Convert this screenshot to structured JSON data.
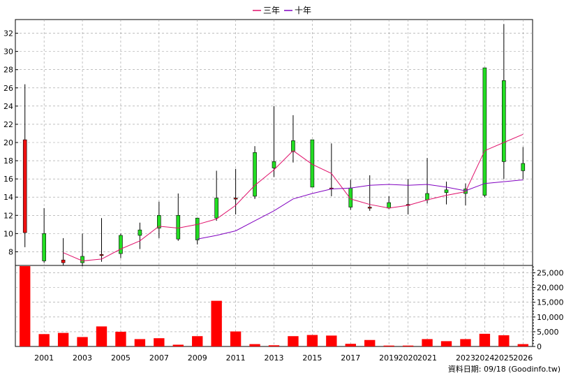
{
  "chart_data": {
    "type": "candlestick",
    "legend": [
      {
        "name": "三年",
        "color": "#e0106a"
      },
      {
        "name": "十年",
        "color": "#8000c0"
      }
    ],
    "legend_position": "top-center",
    "price_ylim": [
      6.5,
      33.5
    ],
    "price_yticks": [
      8,
      10,
      12,
      14,
      16,
      18,
      20,
      22,
      24,
      26,
      28,
      30,
      32
    ],
    "volume_ylim": [
      0,
      27500
    ],
    "volume_yticks": [
      "0",
      "5,000",
      "10,000",
      "15,000",
      "20,000",
      "25,000"
    ],
    "volume_ytick_values": [
      0,
      5000,
      10000,
      15000,
      20000,
      25000
    ],
    "x_tick_labels": [
      "2001",
      "2003",
      "2005",
      "2007",
      "2009",
      "2011",
      "2013",
      "2015",
      "2017",
      "2019",
      "2020",
      "2021",
      "2023",
      "2024",
      "2025",
      "2026"
    ],
    "x_tick_years": [
      2001,
      2003,
      2005,
      2007,
      2009,
      2011,
      2013,
      2015,
      2017,
      2019,
      2020,
      2021,
      2023,
      2024,
      2025,
      2026
    ],
    "grid": true,
    "candles": [
      {
        "year": 2000,
        "open": 10.1,
        "high": 26.4,
        "low": 8.5,
        "close": 20.3
      },
      {
        "year": 2001,
        "open": 10.0,
        "high": 12.8,
        "low": 6.8,
        "close": 7.0
      },
      {
        "year": 2002,
        "open": 6.8,
        "high": 9.5,
        "low": 6.5,
        "close": 7.1
      },
      {
        "year": 2003,
        "open": 7.5,
        "high": 10.0,
        "low": 6.4,
        "close": 6.8
      },
      {
        "year": 2004,
        "open": 7.6,
        "high": 11.7,
        "low": 6.9,
        "close": 7.7
      },
      {
        "year": 2005,
        "open": 9.8,
        "high": 10.0,
        "low": 7.3,
        "close": 7.8
      },
      {
        "year": 2006,
        "open": 10.4,
        "high": 11.2,
        "low": 8.3,
        "close": 9.8
      },
      {
        "year": 2007,
        "open": 12.0,
        "high": 13.5,
        "low": 9.5,
        "close": 10.6
      },
      {
        "year": 2008,
        "open": 12.0,
        "high": 14.4,
        "low": 9.2,
        "close": 9.4
      },
      {
        "year": 2009,
        "open": 11.7,
        "high": 11.7,
        "low": 8.8,
        "close": 9.3
      },
      {
        "year": 2010,
        "open": 13.9,
        "high": 16.9,
        "low": 11.4,
        "close": 11.7
      },
      {
        "year": 2011,
        "open": 13.9,
        "high": 17.1,
        "low": 12.1,
        "close": 13.9
      },
      {
        "year": 2012,
        "open": 18.9,
        "high": 19.6,
        "low": 13.8,
        "close": 14.1
      },
      {
        "year": 2013,
        "open": 17.9,
        "high": 24.0,
        "low": 16.2,
        "close": 17.2
      },
      {
        "year": 2014,
        "open": 20.2,
        "high": 23.0,
        "low": 17.8,
        "close": 19.0
      },
      {
        "year": 2015,
        "open": 20.3,
        "high": 20.3,
        "low": 15.1,
        "close": 15.1
      },
      {
        "year": 2016,
        "open": 14.9,
        "high": 19.9,
        "low": 14.1,
        "close": 15.0
      },
      {
        "year": 2017,
        "open": 15.0,
        "high": 15.9,
        "low": 12.6,
        "close": 12.9
      },
      {
        "year": 2018,
        "open": 12.8,
        "high": 16.4,
        "low": 12.5,
        "close": 12.9
      },
      {
        "year": 2019,
        "open": 13.4,
        "high": 14.1,
        "low": 12.7,
        "close": 12.8
      },
      {
        "year": 2020,
        "open": 13.1,
        "high": 16.0,
        "low": 12.1,
        "close": 13.2
      },
      {
        "year": 2021,
        "open": 14.4,
        "high": 18.3,
        "low": 13.3,
        "close": 13.7
      },
      {
        "year": 2022,
        "open": 14.8,
        "high": 15.7,
        "low": 13.2,
        "close": 14.5
      },
      {
        "year": 2023,
        "open": 14.9,
        "high": 15.5,
        "low": 13.1,
        "close": 14.4
      },
      {
        "year": 2024,
        "open": 28.2,
        "high": 28.2,
        "low": 14.0,
        "close": 14.2
      },
      {
        "year": 2025,
        "open": 26.8,
        "high": 33.0,
        "low": 16.0,
        "close": 17.9
      },
      {
        "year": 2026,
        "open": 17.7,
        "high": 19.5,
        "low": 16.0,
        "close": 16.9
      }
    ],
    "ma_3yr": {
      "years": [
        2002,
        2003,
        2004,
        2005,
        2006,
        2007,
        2008,
        2009,
        2010,
        2011,
        2012,
        2013,
        2014,
        2015,
        2016,
        2017,
        2018,
        2019,
        2020,
        2021,
        2022,
        2023,
        2024,
        2025,
        2026
      ],
      "values": [
        7.9,
        7.0,
        7.2,
        8.3,
        9.2,
        10.8,
        10.6,
        11.0,
        11.6,
        13.1,
        15.3,
        17.0,
        19.1,
        17.6,
        16.6,
        13.8,
        13.2,
        12.8,
        13.1,
        13.7,
        14.2,
        14.6,
        19.1,
        20.0,
        20.9
      ]
    },
    "ma_10yr": {
      "years": [
        2009,
        2010,
        2011,
        2012,
        2013,
        2014,
        2015,
        2016,
        2017,
        2018,
        2019,
        2020,
        2021,
        2022,
        2023,
        2024,
        2025,
        2026
      ],
      "values": [
        9.4,
        9.8,
        10.3,
        11.4,
        12.5,
        13.8,
        14.4,
        14.9,
        15.0,
        15.3,
        15.4,
        15.3,
        15.4,
        15.1,
        14.7,
        15.5,
        15.7,
        15.9
      ]
    },
    "volume": {
      "years": [
        2000,
        2001,
        2002,
        2003,
        2004,
        2005,
        2006,
        2007,
        2008,
        2009,
        2010,
        2011,
        2012,
        2013,
        2014,
        2015,
        2016,
        2017,
        2018,
        2019,
        2020,
        2021,
        2022,
        2023,
        2024,
        2025,
        2026
      ],
      "values": [
        28000,
        4200,
        4600,
        3200,
        6800,
        5000,
        2500,
        2800,
        600,
        3500,
        15500,
        5100,
        800,
        400,
        3500,
        3900,
        3700,
        900,
        2200,
        300,
        300,
        2500,
        1800,
        2500,
        4300,
        3800,
        800
      ]
    },
    "colors": {
      "up": "#ee1111",
      "down": "#22dd22",
      "volume": "#ff0000",
      "wick": "#000000",
      "grid": "#999999"
    },
    "source_note": "資料日期: 09/18 (Goodinfo.tw)"
  }
}
